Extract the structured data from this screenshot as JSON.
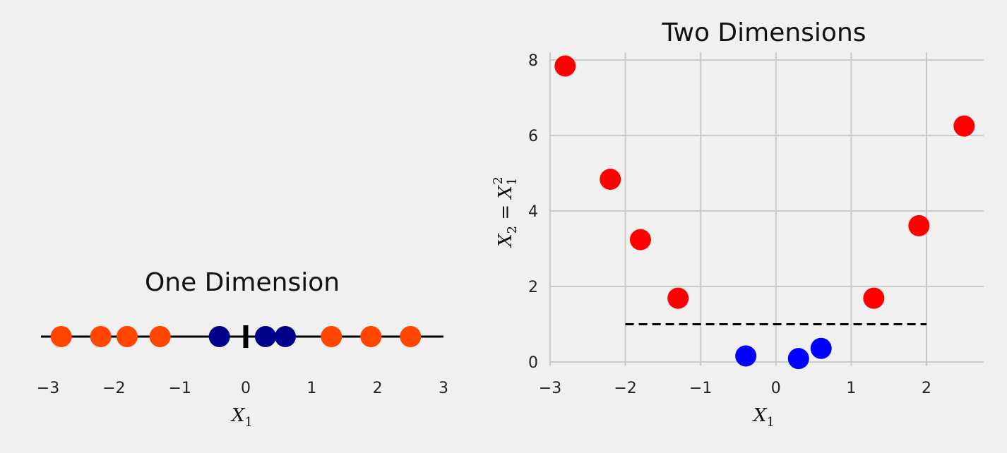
{
  "chart_data": [
    {
      "type": "scatter",
      "title": "One Dimension",
      "xlabel_base": "X",
      "xlabel_sub": "1",
      "xlim": [
        -3,
        3
      ],
      "xticks": [
        -3,
        -2,
        -1,
        0,
        1,
        2,
        3
      ],
      "xtick_labels": [
        "−3",
        "−2",
        "−1",
        "0",
        "1",
        "2",
        "3"
      ],
      "grid": false,
      "colors": {
        "outer": "#ff4500",
        "inner": "#00008b",
        "axis_line": "#000000"
      },
      "points_outer": [
        -2.8,
        -2.2,
        -1.8,
        -1.3,
        1.3,
        1.9,
        2.5
      ],
      "points_inner": [
        -0.4,
        0.3,
        0.6
      ],
      "origin_marker": 0
    },
    {
      "type": "scatter",
      "title": "Two Dimensions",
      "xlabel_base": "X",
      "xlabel_sub": "1",
      "ylabel_base_1": "X",
      "ylabel_sub_1": "2",
      "ylabel_eq": " = ",
      "ylabel_base_2": "X",
      "ylabel_sub_2": "1",
      "ylabel_sup_2": "2",
      "xlim": [
        -3,
        2.7
      ],
      "ylim": [
        -0.1,
        8.2
      ],
      "xticks": [
        -3,
        -2,
        -1,
        0,
        1,
        2
      ],
      "xtick_labels": [
        "−3",
        "−2",
        "−1",
        "0",
        "1",
        "2"
      ],
      "yticks": [
        0,
        2,
        4,
        6,
        8
      ],
      "ytick_labels": [
        "0",
        "2",
        "4",
        "6",
        "8"
      ],
      "grid": true,
      "colors": {
        "outer": "#ff0000",
        "inner": "#0000ff",
        "grid": "#cbcbcb",
        "boundary": "#000000"
      },
      "series": [
        {
          "class": "outer",
          "x": [
            -2.8,
            -2.2,
            -1.8,
            -1.3,
            1.3,
            1.9,
            2.5
          ],
          "y": [
            7.84,
            4.84,
            3.24,
            1.69,
            1.69,
            3.61,
            6.25
          ]
        },
        {
          "class": "inner",
          "x": [
            -0.4,
            0.3,
            0.6
          ],
          "y": [
            0.16,
            0.09,
            0.36
          ]
        }
      ],
      "boundary_line": {
        "x": [
          -2,
          2
        ],
        "y": [
          1,
          1
        ],
        "style": "dashed"
      }
    }
  ]
}
